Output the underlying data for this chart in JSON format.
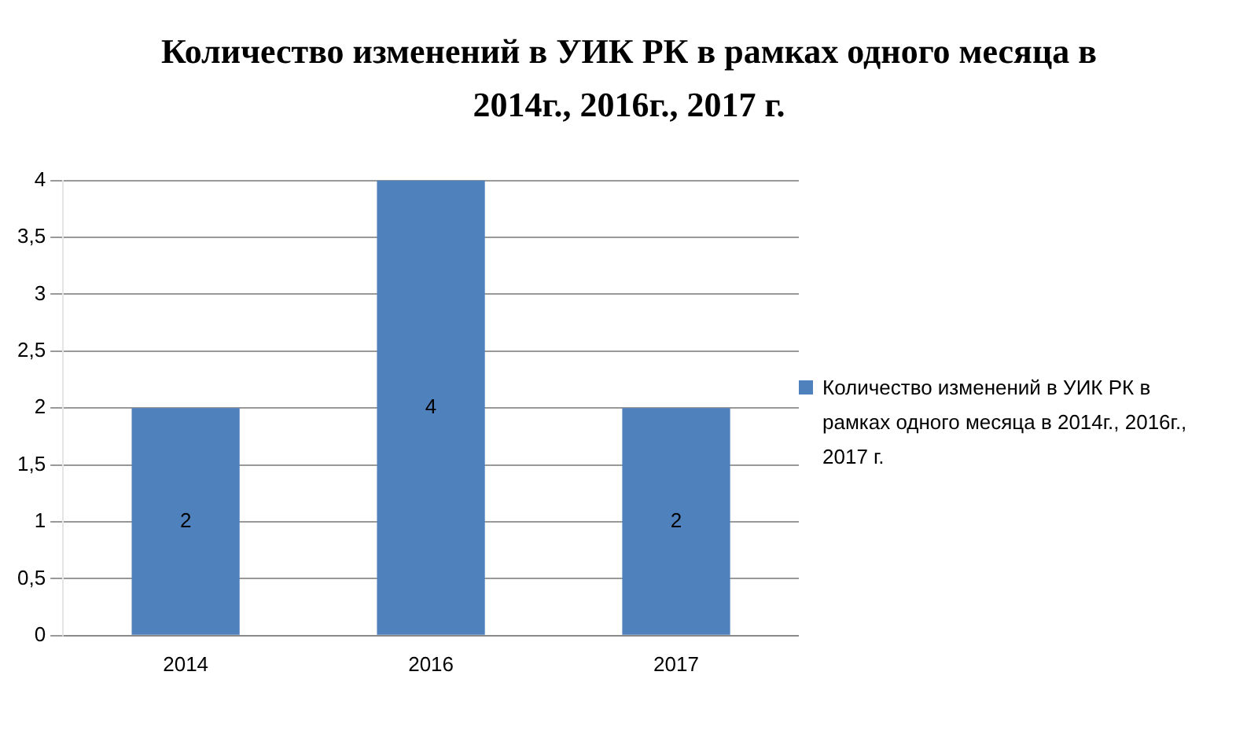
{
  "chart_data": {
    "type": "bar",
    "title": "Количество изменений в УИК РК в рамках  одного месяца в 2014г., 2016г., 2017 г.",
    "categories": [
      "2014",
      "2016",
      "2017"
    ],
    "series": [
      {
        "name": "Количество изменений  в УИК РК в рамках  одного месяца в 2014г., 2016г., 2017 г.",
        "color": "#4f81bd",
        "values": [
          2,
          4,
          2
        ]
      }
    ],
    "ylim": [
      0,
      4
    ],
    "yticks": [
      0,
      {
        "value": 0.5,
        "label": "0,5"
      },
      1,
      {
        "value": 1.5,
        "label": "1,5"
      },
      2,
      {
        "value": 2.5,
        "label": "2,5"
      },
      3,
      {
        "value": 3.5,
        "label": "3,5"
      },
      4
    ],
    "grid": "y",
    "legend": "right",
    "data_labels": true
  }
}
